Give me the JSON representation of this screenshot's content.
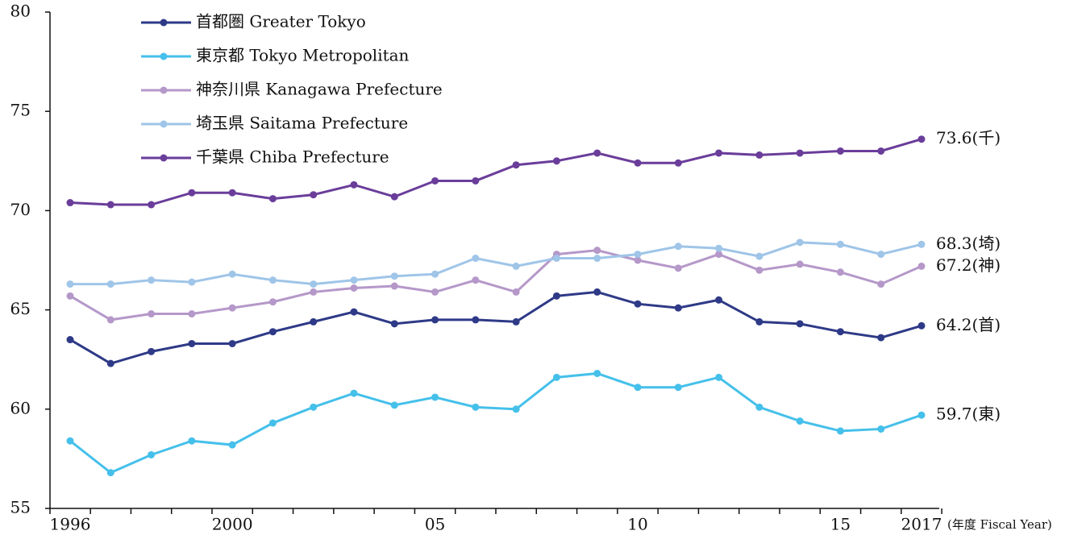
{
  "chart_data": {
    "type": "line",
    "x_label": "(年度 Fiscal Year)",
    "categories": [
      "1996",
      null,
      null,
      null,
      "2000",
      null,
      null,
      null,
      null,
      "05",
      null,
      null,
      null,
      null,
      "10",
      null,
      null,
      null,
      null,
      "15",
      null,
      "2017"
    ],
    "ylim": [
      55,
      80
    ],
    "yticks": [
      55,
      60,
      65,
      70,
      75,
      80
    ],
    "grid": false,
    "legend_position": "upper left",
    "series": [
      {
        "name": "首都圏 Greater Tokyo",
        "color": "#2e3a87",
        "values": [
          63.5,
          62.3,
          62.9,
          63.3,
          63.3,
          63.9,
          64.4,
          64.9,
          64.3,
          64.5,
          64.5,
          64.4,
          65.7,
          65.9,
          65.3,
          65.1,
          65.5,
          64.4,
          64.3,
          63.9,
          63.6,
          64.2
        ],
        "value_labels": [
          null,
          null,
          null,
          null,
          null,
          null,
          null,
          null,
          null,
          null,
          null,
          null,
          null,
          null,
          null,
          null,
          null,
          null,
          null,
          null,
          null,
          "64.2(首)"
        ]
      },
      {
        "name": "東京都 Tokyo Metropolitan",
        "color": "#45c0ea",
        "values": [
          58.4,
          56.8,
          57.7,
          58.4,
          58.2,
          59.3,
          60.1,
          60.8,
          60.2,
          60.6,
          60.1,
          60.0,
          61.6,
          61.8,
          61.1,
          61.1,
          61.6,
          60.1,
          59.4,
          58.9,
          59.0,
          59.7
        ],
        "value_labels": [
          null,
          null,
          null,
          null,
          null,
          null,
          null,
          null,
          null,
          null,
          null,
          null,
          null,
          null,
          null,
          null,
          null,
          null,
          null,
          null,
          null,
          "59.7(東)"
        ]
      },
      {
        "name": "神奈川県 Kanagawa Prefecture",
        "color": "#b598c9",
        "values": [
          65.7,
          64.5,
          64.8,
          64.8,
          65.1,
          65.4,
          65.9,
          66.1,
          66.2,
          65.9,
          66.5,
          65.9,
          67.8,
          68.0,
          67.5,
          67.1,
          67.8,
          67.0,
          67.3,
          66.9,
          66.3,
          67.2
        ],
        "value_labels": [
          null,
          null,
          null,
          null,
          null,
          null,
          null,
          null,
          null,
          null,
          null,
          null,
          null,
          null,
          null,
          null,
          null,
          null,
          null,
          null,
          null,
          "67.2(神)"
        ]
      },
      {
        "name": "埼玉県 Saitama Prefecture",
        "color": "#9fc5e8",
        "values": [
          66.3,
          66.3,
          66.5,
          66.4,
          66.8,
          66.5,
          66.3,
          66.5,
          66.7,
          66.8,
          67.6,
          67.2,
          67.6,
          67.6,
          67.8,
          68.2,
          68.1,
          67.7,
          68.4,
          68.3,
          67.8,
          68.3
        ],
        "value_labels": [
          null,
          null,
          null,
          null,
          null,
          null,
          null,
          null,
          null,
          null,
          null,
          null,
          null,
          null,
          null,
          null,
          null,
          null,
          null,
          null,
          null,
          "68.3(埼)"
        ]
      },
      {
        "name": "千葉県 Chiba Prefecture",
        "color": "#6a3d9a",
        "values": [
          70.4,
          70.3,
          70.3,
          70.9,
          70.9,
          70.6,
          70.8,
          71.3,
          70.7,
          71.5,
          71.5,
          72.3,
          72.5,
          72.9,
          72.4,
          72.4,
          72.9,
          72.8,
          72.9,
          73.0,
          73.0,
          73.6
        ],
        "value_labels": [
          null,
          null,
          null,
          null,
          null,
          null,
          null,
          null,
          null,
          null,
          null,
          null,
          null,
          null,
          null,
          null,
          null,
          null,
          null,
          null,
          null,
          "73.6(千)"
        ]
      }
    ]
  }
}
